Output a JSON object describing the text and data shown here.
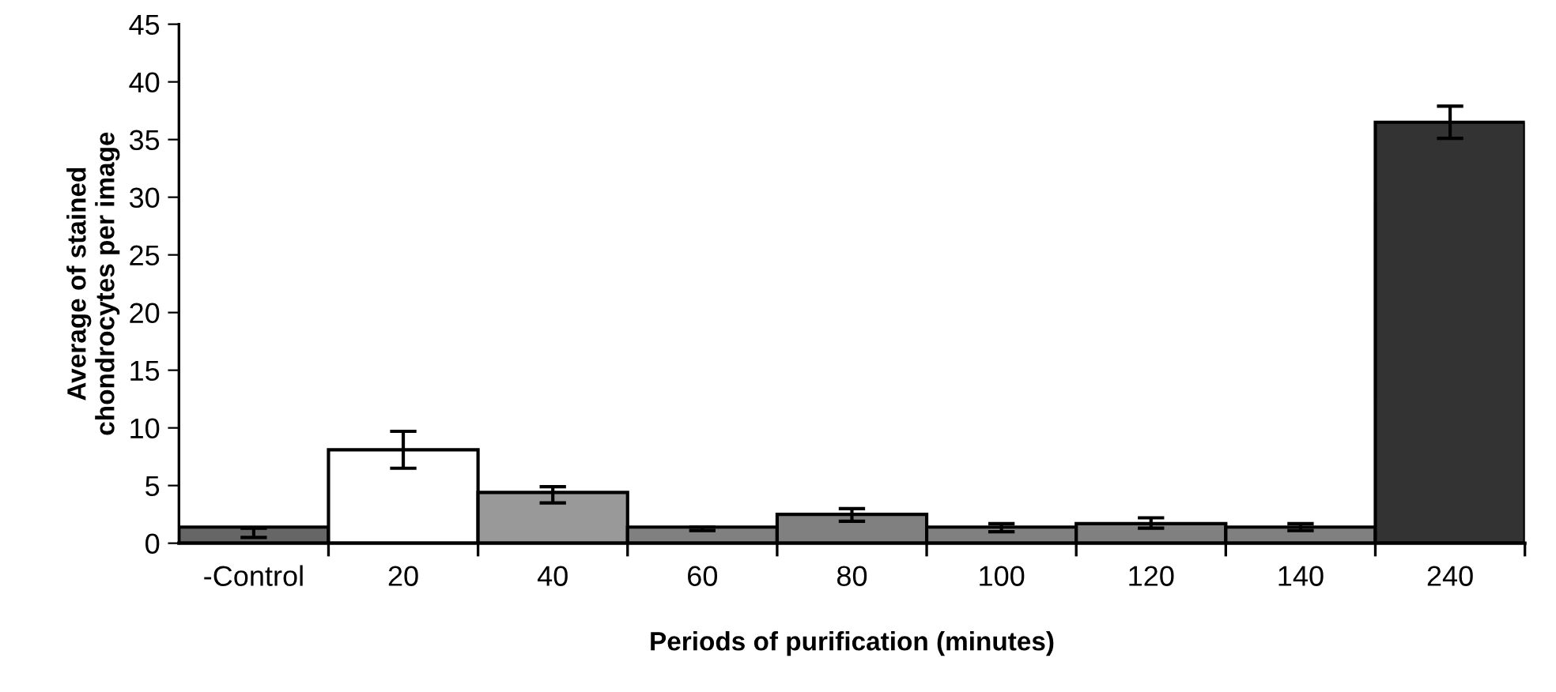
{
  "chart_data": {
    "type": "bar",
    "xlabel": "Periods of purification (minutes)",
    "ylabel": "Average of stained\nchondrocytes per image",
    "categories": [
      "-Control",
      "20",
      "40",
      "60",
      "80",
      "100",
      "120",
      "140",
      "240"
    ],
    "values": [
      1.4,
      8.1,
      4.4,
      1.4,
      2.5,
      1.4,
      1.7,
      1.4,
      36.5
    ],
    "errors": [
      [
        0.5,
        1.3
      ],
      [
        6.5,
        9.7
      ],
      [
        3.5,
        4.9
      ],
      [
        1.1,
        1.4
      ],
      [
        1.9,
        3.0
      ],
      [
        1.0,
        1.7
      ],
      [
        1.3,
        2.2
      ],
      [
        1.1,
        1.7
      ],
      [
        35.1,
        37.9
      ]
    ],
    "colors": [
      "#666666",
      "#ffffff",
      "#999999",
      "#808080",
      "#808080",
      "#808080",
      "#808080",
      "#808080",
      "#333333"
    ],
    "ylim": [
      0,
      45
    ],
    "yticks": [
      0,
      5,
      10,
      15,
      20,
      25,
      30,
      35,
      40,
      45
    ],
    "grid": false,
    "legend": false
  }
}
